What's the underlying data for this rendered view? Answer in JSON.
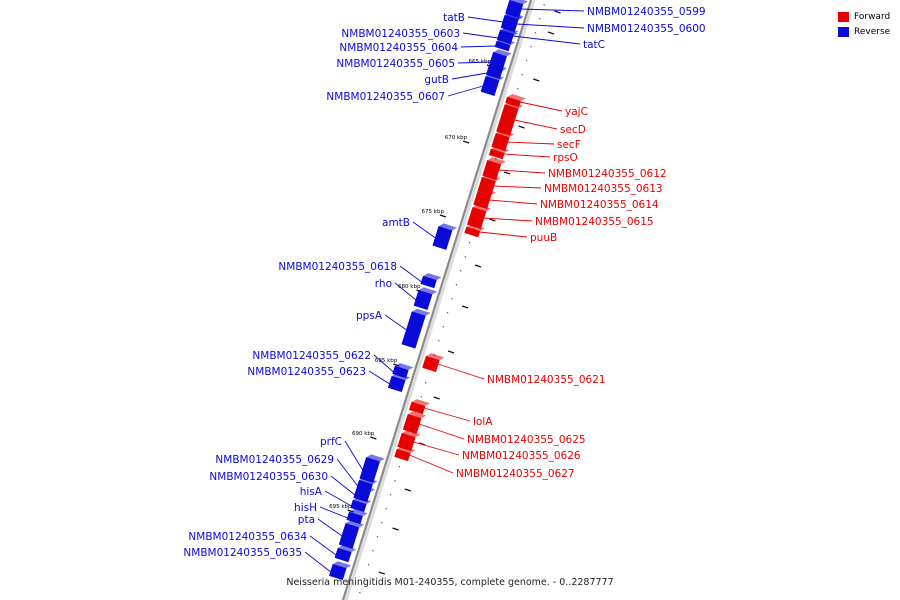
{
  "colors": {
    "forward": "#e60000",
    "reverse": "#0a0ad9",
    "backbone": "#8a8a8a"
  },
  "legend": {
    "forward_label": "Forward",
    "reverse_label": "Reverse"
  },
  "caption": "Neisseria meningitidis M01-240355, complete genome. - 0..2287777",
  "kbp_marks": [
    {
      "kbp": 665,
      "label": "665 kbp"
    },
    {
      "kbp": 670,
      "label": "670 kbp"
    },
    {
      "kbp": 675,
      "label": "675 kbp"
    },
    {
      "kbp": 680,
      "label": "680 kbp"
    },
    {
      "kbp": 685,
      "label": "685 kbp"
    },
    {
      "kbp": 690,
      "label": "690 kbp"
    },
    {
      "kbp": 695,
      "label": "695 kbp"
    }
  ],
  "genes": {
    "reverse": [
      "NMBM01240355_0599",
      "NMBM01240355_0600",
      "tatC",
      "tatB",
      "NMBM01240355_0603",
      "NMBM01240355_0604",
      "NMBM01240355_0605",
      "gutB",
      "NMBM01240355_0607",
      "amtB",
      "NMBM01240355_0618",
      "rho",
      "ppsA",
      "NMBM01240355_0622",
      "NMBM01240355_0623",
      "prfC",
      "NMBM01240355_0629",
      "NMBM01240355_0630",
      "hisA",
      "hisH",
      "pta",
      "NMBM01240355_0634",
      "NMBM01240355_0635"
    ],
    "forward": [
      "yajC",
      "secD",
      "secF",
      "rpsO",
      "NMBM01240355_0612",
      "NMBM01240355_0613",
      "NMBM01240355_0614",
      "NMBM01240355_0615",
      "puuB",
      "NMBM01240355_0621",
      "lolA",
      "NMBM01240355_0625",
      "NMBM01240355_0626",
      "NMBM01240355_0627"
    ]
  }
}
